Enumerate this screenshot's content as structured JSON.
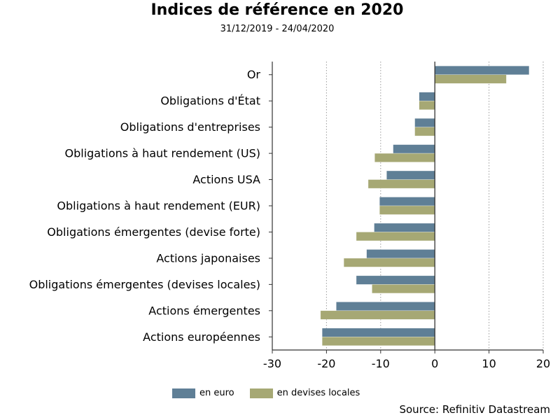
{
  "title": "Indices de référence en 2020",
  "subtitle": "31/12/2019 - 24/04/2020",
  "source": "Source: Refinitiv Datastream",
  "colors": {
    "euro": "#5f7f96",
    "local": "#a6a874",
    "grid": "#9a9a9a",
    "axis": "#333333"
  },
  "chart_data": {
    "type": "bar",
    "orientation": "horizontal",
    "title": "Indices de référence en 2020",
    "subtitle": "31/12/2019 - 24/04/2020",
    "xlim": [
      -30,
      20
    ],
    "xticks": [
      -30,
      -20,
      -10,
      0,
      10,
      20
    ],
    "grid": "vertical dotted",
    "legend_position": "bottom",
    "categories": [
      "Or",
      "Obligations d'État",
      "Obligations d'entreprises",
      "Obligations à haut rendement (US)",
      "Actions USA",
      "Obligations à haut rendement (EUR)",
      "Obligations émergentes (devise forte)",
      "Actions japonaises",
      "Obligations émergentes (devises locales)",
      "Actions émergentes",
      "Actions européennes"
    ],
    "series": [
      {
        "name": "en euro",
        "values": [
          17.4,
          -2.9,
          -3.7,
          -7.7,
          -8.9,
          -10.2,
          -11.2,
          -12.6,
          -14.5,
          -18.2,
          -20.8
        ]
      },
      {
        "name": "en devises locales",
        "values": [
          13.2,
          -2.9,
          -3.7,
          -11.1,
          -12.3,
          -10.2,
          -14.5,
          -16.8,
          -11.6,
          -21.1,
          -20.8
        ]
      }
    ]
  }
}
